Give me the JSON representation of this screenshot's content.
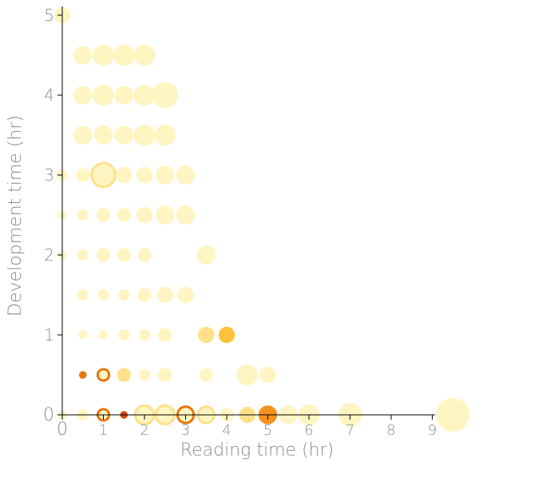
{
  "chart_data": {
    "type": "scatter",
    "title": "",
    "xlabel": "Reading time (hr)",
    "ylabel": "Development time (hr)",
    "xlim": [
      0,
      9.5
    ],
    "ylim": [
      0,
      5
    ],
    "xticks": [
      0,
      1,
      2,
      3,
      4,
      5,
      6,
      7,
      8,
      9
    ],
    "yticks": [
      0,
      1,
      2,
      3,
      4,
      5
    ],
    "xtick_labels": [
      "0",
      "1",
      "2",
      "3",
      "4",
      "5",
      "6",
      "7",
      "8",
      "9"
    ],
    "ytick_labels": [
      "0",
      "1",
      "2",
      "3",
      "4",
      "5"
    ],
    "grid": false,
    "encoding": "bubble size = count, color = intensity",
    "colors": {
      "axis": "#000000",
      "light": "#fff5c2",
      "mid_light": "#ffe08a",
      "mid": "#ffd060",
      "orange": "#f5a623",
      "dark_orange": "#e8740c",
      "darkest": "#cc4b00"
    },
    "points": [
      {
        "x": 0,
        "y": 5,
        "size": 4,
        "color": "#fff5c2"
      },
      {
        "x": 0.5,
        "y": 4.5,
        "size": 5,
        "color": "#fff5c2"
      },
      {
        "x": 1,
        "y": 4.5,
        "size": 6,
        "color": "#fff5c2"
      },
      {
        "x": 1.5,
        "y": 4.5,
        "size": 6,
        "color": "#fff5c2"
      },
      {
        "x": 2,
        "y": 4.5,
        "size": 6,
        "color": "#fff5c2"
      },
      {
        "x": 0.5,
        "y": 4,
        "size": 5,
        "color": "#fff5c2"
      },
      {
        "x": 1,
        "y": 4,
        "size": 6,
        "color": "#fff5c2"
      },
      {
        "x": 1.5,
        "y": 4,
        "size": 5,
        "color": "#fff5c2"
      },
      {
        "x": 2,
        "y": 4,
        "size": 6,
        "color": "#fff5c2"
      },
      {
        "x": 2.5,
        "y": 4,
        "size": 8,
        "color": "#fff5c2"
      },
      {
        "x": 0.5,
        "y": 3.5,
        "size": 5,
        "color": "#fff5c2"
      },
      {
        "x": 1,
        "y": 3.5,
        "size": 5,
        "color": "#fff5c2"
      },
      {
        "x": 1.5,
        "y": 3.5,
        "size": 5,
        "color": "#fff5c2"
      },
      {
        "x": 2,
        "y": 3.5,
        "size": 6,
        "color": "#fff5c2"
      },
      {
        "x": 2.5,
        "y": 3.5,
        "size": 6,
        "color": "#fff5c2"
      },
      {
        "x": 0,
        "y": 3,
        "size": 2,
        "color": "#fff5c2"
      },
      {
        "x": 0.5,
        "y": 3,
        "size": 3,
        "color": "#fff5c2"
      },
      {
        "x": 1,
        "y": 3,
        "size": 7,
        "color": "#fff5c2",
        "ring": "#ffe08a"
      },
      {
        "x": 1.5,
        "y": 3,
        "size": 4,
        "color": "#fff5c2"
      },
      {
        "x": 2,
        "y": 3,
        "size": 4,
        "color": "#fff5c2"
      },
      {
        "x": 2.5,
        "y": 3,
        "size": 5,
        "color": "#fff5c2"
      },
      {
        "x": 3,
        "y": 3,
        "size": 5,
        "color": "#fff5c2"
      },
      {
        "x": 0,
        "y": 2.5,
        "size": 1,
        "color": "#fff5c2"
      },
      {
        "x": 0.5,
        "y": 2.5,
        "size": 2,
        "color": "#fff5c2"
      },
      {
        "x": 1,
        "y": 2.5,
        "size": 3,
        "color": "#fff5c2"
      },
      {
        "x": 1.5,
        "y": 2.5,
        "size": 3,
        "color": "#fff5c2"
      },
      {
        "x": 2,
        "y": 2.5,
        "size": 4,
        "color": "#fff5c2"
      },
      {
        "x": 2.5,
        "y": 2.5,
        "size": 5,
        "color": "#fff5c2"
      },
      {
        "x": 3,
        "y": 2.5,
        "size": 5,
        "color": "#fff5c2"
      },
      {
        "x": 0,
        "y": 2,
        "size": 1,
        "color": "#fff5c2"
      },
      {
        "x": 0.5,
        "y": 2,
        "size": 2,
        "color": "#fff5c2"
      },
      {
        "x": 1,
        "y": 2,
        "size": 3,
        "color": "#fff5c2"
      },
      {
        "x": 1.5,
        "y": 2,
        "size": 3,
        "color": "#fff5c2"
      },
      {
        "x": 2,
        "y": 2,
        "size": 3,
        "color": "#fff5c2"
      },
      {
        "x": 3.5,
        "y": 2,
        "size": 5,
        "color": "#fff5c2"
      },
      {
        "x": 0.5,
        "y": 1.5,
        "size": 2,
        "color": "#fff5c2"
      },
      {
        "x": 1,
        "y": 1.5,
        "size": 2,
        "color": "#fff5c2"
      },
      {
        "x": 1.5,
        "y": 1.5,
        "size": 2,
        "color": "#fff5c2"
      },
      {
        "x": 2,
        "y": 1.5,
        "size": 3,
        "color": "#fff5c2"
      },
      {
        "x": 2.5,
        "y": 1.5,
        "size": 4,
        "color": "#fff5c2"
      },
      {
        "x": 3,
        "y": 1.5,
        "size": 4,
        "color": "#fff5c2"
      },
      {
        "x": 0.5,
        "y": 1,
        "size": 1,
        "color": "#fff5c2"
      },
      {
        "x": 1,
        "y": 1,
        "size": 1,
        "color": "#fff5c2"
      },
      {
        "x": 1.5,
        "y": 1,
        "size": 2,
        "color": "#fff5c2"
      },
      {
        "x": 2,
        "y": 1,
        "size": 2,
        "color": "#fff5c2"
      },
      {
        "x": 2.5,
        "y": 1,
        "size": 3,
        "color": "#fff5c2"
      },
      {
        "x": 3.5,
        "y": 1,
        "size": 4,
        "color": "#ffe08a"
      },
      {
        "x": 4,
        "y": 1,
        "size": 4,
        "color": "#ffc13d"
      },
      {
        "x": 0.5,
        "y": 0.5,
        "size": 0.5,
        "color": "#e8740c"
      },
      {
        "x": 1,
        "y": 0.5,
        "size": 2,
        "color": "#fff5c2",
        "ring": "#e8740c"
      },
      {
        "x": 1.5,
        "y": 0.5,
        "size": 3,
        "color": "#ffe08a"
      },
      {
        "x": 2,
        "y": 0.5,
        "size": 2,
        "color": "#fff5c2"
      },
      {
        "x": 2.5,
        "y": 0.5,
        "size": 3,
        "color": "#fff5c2"
      },
      {
        "x": 3.5,
        "y": 0.5,
        "size": 3,
        "color": "#fff5c2"
      },
      {
        "x": 4.5,
        "y": 0.5,
        "size": 6,
        "color": "#fff5c2"
      },
      {
        "x": 5,
        "y": 0.5,
        "size": 4,
        "color": "#fff5c2"
      },
      {
        "x": 0,
        "y": 0,
        "size": 1,
        "color": "#fff5c2"
      },
      {
        "x": 0.5,
        "y": 0,
        "size": 2,
        "color": "#fff5c2"
      },
      {
        "x": 1,
        "y": 0,
        "size": 2,
        "color": "#fff5c2",
        "ring": "#e8740c"
      },
      {
        "x": 1.5,
        "y": 0,
        "size": 0.5,
        "color": "#cc4b00"
      },
      {
        "x": 2,
        "y": 0,
        "size": 5,
        "color": "#fff5c2",
        "ring": "#ffe08a"
      },
      {
        "x": 2.5,
        "y": 0,
        "size": 5,
        "color": "#fff5c2",
        "ring": "#ffe08a"
      },
      {
        "x": 3,
        "y": 0,
        "size": 4,
        "color": "#fff5c2",
        "ring": "#e8740c"
      },
      {
        "x": 3.5,
        "y": 0,
        "size": 4,
        "color": "#fff5c2",
        "ring": "#ffe08a"
      },
      {
        "x": 4,
        "y": 0,
        "size": 3,
        "color": "#fff5c2"
      },
      {
        "x": 4.5,
        "y": 0,
        "size": 4,
        "color": "#ffe08a"
      },
      {
        "x": 5,
        "y": 0,
        "size": 5,
        "color": "#f5921e"
      },
      {
        "x": 5.5,
        "y": 0,
        "size": 5,
        "color": "#fff5c2"
      },
      {
        "x": 6,
        "y": 0,
        "size": 6,
        "color": "#fff5c2"
      },
      {
        "x": 7,
        "y": 0,
        "size": 7,
        "color": "#fff5c2"
      },
      {
        "x": 9.5,
        "y": 0,
        "size": 11,
        "color": "#fff5c2"
      }
    ]
  }
}
